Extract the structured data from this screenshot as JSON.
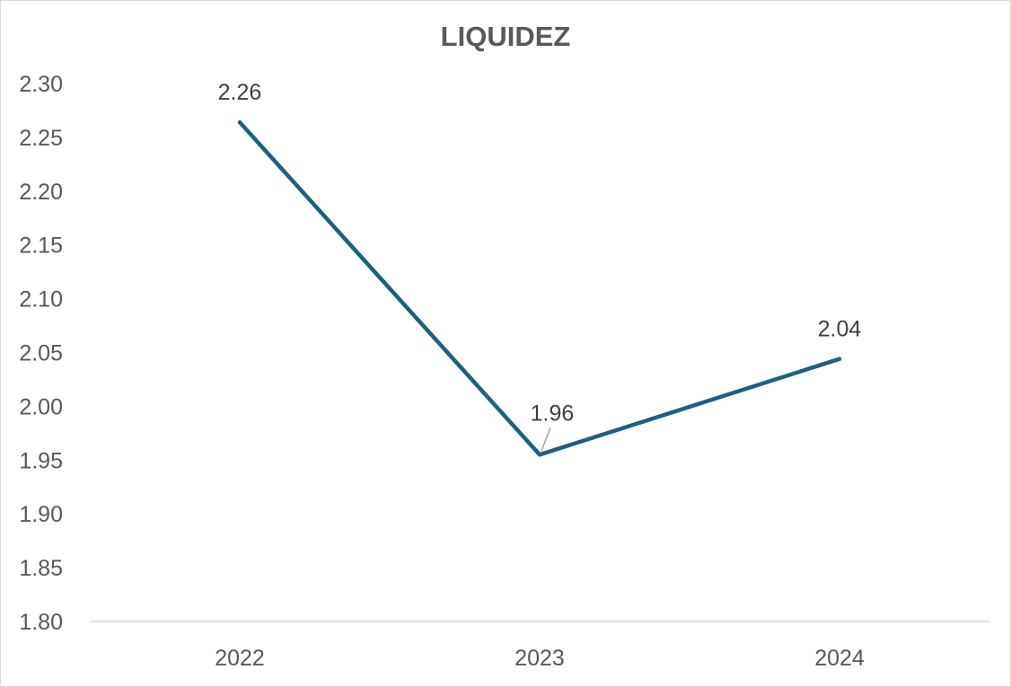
{
  "chart_data": {
    "type": "line",
    "title": "LIQUIDEZ",
    "xlabel": "",
    "ylabel": "",
    "categories": [
      "2022",
      "2023",
      "2024"
    ],
    "series": [
      {
        "values": [
          2.264,
          1.955,
          2.044
        ],
        "labels": [
          "2.26",
          "1.96",
          "2.04"
        ],
        "color": "#1f5f7f"
      }
    ],
    "ylim": [
      1.8,
      2.3
    ],
    "yticks": [
      "1.80",
      "1.85",
      "1.90",
      "1.95",
      "2.00",
      "2.05",
      "2.10",
      "2.15",
      "2.20",
      "2.25",
      "2.30"
    ],
    "grid": false,
    "legend": "none"
  }
}
